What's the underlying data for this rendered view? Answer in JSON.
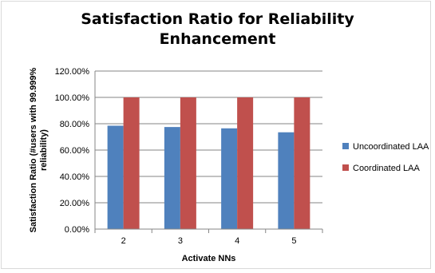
{
  "chart_data": {
    "type": "bar",
    "title": "Satisfaction Ratio for Reliability Enhancement",
    "title_lines": [
      "Satisfaction Ratio for Reliability",
      "Enhancement"
    ],
    "xlabel": "Activate NNs",
    "ylabel": "Satisfaction Ratio (#users with 99.999% reliability)",
    "ylabel_lines": [
      "Satisfaction Ratio (#users with 99.999%",
      "reliability)"
    ],
    "categories": [
      "2",
      "3",
      "4",
      "5"
    ],
    "ylim": [
      0,
      120
    ],
    "yticks": [
      0,
      20,
      40,
      60,
      80,
      100,
      120
    ],
    "ytick_labels": [
      "0.00%",
      "20.00%",
      "40.00%",
      "60.00%",
      "80.00%",
      "100.00%",
      "120.00%"
    ],
    "grid": true,
    "legend_position": "right",
    "series": [
      {
        "name": "Uncoordinated LAA",
        "color": "#4f81bd",
        "values": [
          78.5,
          77.5,
          76.5,
          73.5
        ]
      },
      {
        "name": "Coordinated LAA",
        "color": "#c0504d",
        "values": [
          100,
          100,
          100,
          100
        ]
      }
    ]
  }
}
